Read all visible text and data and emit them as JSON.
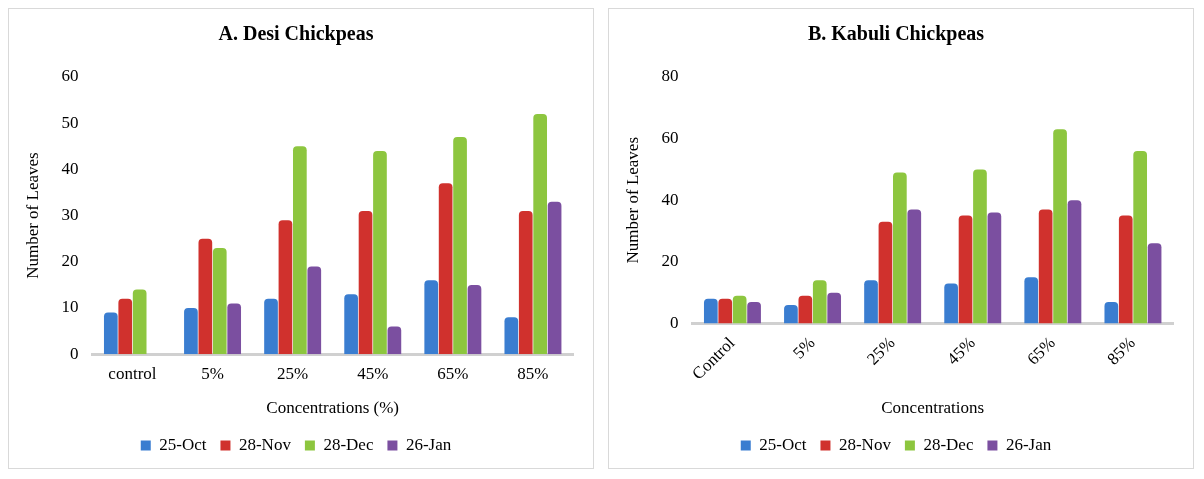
{
  "chart_data": [
    {
      "type": "bar",
      "title": "A. Desi Chickpeas",
      "xlabel": "Concentrations (%)",
      "ylabel": "Number of Leaves",
      "categories": [
        "control",
        "5%",
        "25%",
        "45%",
        "65%",
        "85%"
      ],
      "series": [
        {
          "name": "25-Oct",
          "color": "#3a7dd0",
          "values": [
            9,
            10,
            12,
            13,
            16,
            8
          ]
        },
        {
          "name": "28-Nov",
          "color": "#d0312d",
          "values": [
            12,
            25,
            29,
            31,
            37,
            31
          ]
        },
        {
          "name": "28-Dec",
          "color": "#8dc63f",
          "values": [
            14,
            23,
            45,
            44,
            47,
            52
          ]
        },
        {
          "name": "26-Jan",
          "color": "#7b4fa0",
          "values": [
            0,
            11,
            19,
            6,
            15,
            33
          ]
        }
      ],
      "ylim": [
        0,
        60
      ],
      "yticks": [
        0,
        10,
        20,
        30,
        40,
        50,
        60
      ],
      "grid": false,
      "legend": "bottom"
    },
    {
      "type": "bar",
      "title": "B. Kabuli Chickpeas",
      "xlabel": "Concentrations",
      "ylabel": "Number of Leaves",
      "categories": [
        "Control",
        "5%",
        "25%",
        "45%",
        "65%",
        "85%"
      ],
      "series": [
        {
          "name": "25-Oct",
          "color": "#3a7dd0",
          "values": [
            8,
            6,
            14,
            13,
            15,
            7
          ]
        },
        {
          "name": "28-Nov",
          "color": "#d0312d",
          "values": [
            8,
            9,
            33,
            35,
            37,
            35
          ]
        },
        {
          "name": "28-Dec",
          "color": "#8dc63f",
          "values": [
            9,
            14,
            49,
            50,
            63,
            56
          ]
        },
        {
          "name": "26-Jan",
          "color": "#7b4fa0",
          "values": [
            7,
            10,
            37,
            36,
            40,
            26
          ]
        }
      ],
      "ylim": [
        0,
        80
      ],
      "yticks": [
        0,
        20,
        40,
        60,
        80
      ],
      "grid": false,
      "legend": "bottom"
    }
  ]
}
